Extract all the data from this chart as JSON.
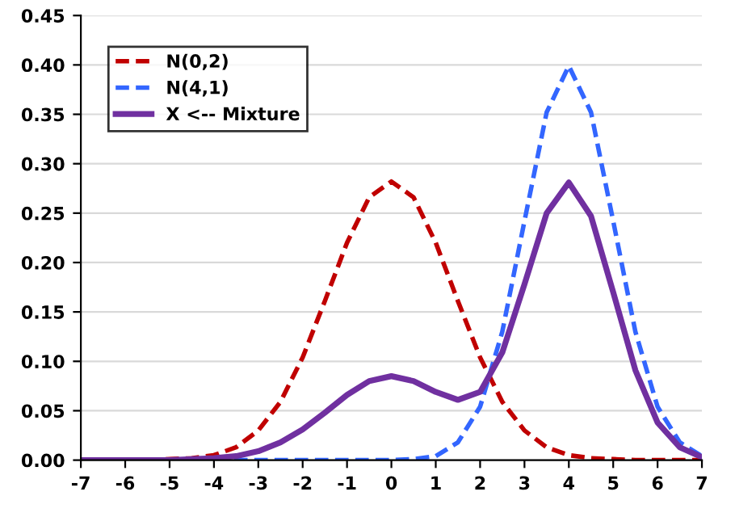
{
  "chart_data": {
    "type": "line",
    "x": [
      -7,
      -6.5,
      -6,
      -5.5,
      -5,
      -4.5,
      -4,
      -3.5,
      -3,
      -2.5,
      -2,
      -1.5,
      -1,
      -0.5,
      0,
      0.5,
      1,
      1.5,
      2,
      2.5,
      3,
      3.5,
      4,
      4.5,
      5,
      5.5,
      6,
      6.5,
      7
    ],
    "series": [
      {
        "name": "N(0,2)",
        "color": "#c00000",
        "line_style": "dashed",
        "values": [
          null,
          null,
          0,
          0,
          0.001,
          0.002,
          0.005,
          0.013,
          0.03,
          0.059,
          0.104,
          0.161,
          0.22,
          0.266,
          0.282,
          0.266,
          0.22,
          0.161,
          0.104,
          0.059,
          0.03,
          0.013,
          0.005,
          0.002,
          0.001,
          0,
          0,
          0,
          0
        ]
      },
      {
        "name": "N(4,1)",
        "color": "#3366ff",
        "line_style": "dashed",
        "values": [
          null,
          null,
          null,
          null,
          null,
          null,
          0,
          0,
          0,
          0,
          0,
          0,
          0,
          0,
          0,
          0.001,
          0.004,
          0.018,
          0.054,
          0.13,
          0.242,
          0.352,
          0.399,
          0.352,
          0.242,
          0.13,
          0.054,
          0.018,
          0.004
        ]
      },
      {
        "name": "X <-- Mixture",
        "color": "#7030a0",
        "line_style": "solid",
        "values": [
          0,
          0,
          0,
          0,
          0,
          0.001,
          0.002,
          0.004,
          0.009,
          0.018,
          0.031,
          0.048,
          0.066,
          0.08,
          0.085,
          0.08,
          0.069,
          0.061,
          0.069,
          0.109,
          0.178,
          0.25,
          0.281,
          0.247,
          0.17,
          0.091,
          0.038,
          0.013,
          0.003
        ]
      }
    ],
    "xlim": [
      -7,
      7
    ],
    "xticks": [
      -7,
      -6,
      -5,
      -4,
      -3,
      -2,
      -1,
      0,
      1,
      2,
      3,
      4,
      5,
      6,
      7
    ],
    "ylim": [
      0,
      0.45
    ],
    "yticks": [
      {
        "value": 0,
        "label": "0.00"
      },
      {
        "value": 0.05,
        "label": "0.05"
      },
      {
        "value": 0.1,
        "label": "0.10"
      },
      {
        "value": 0.15,
        "label": "0.15"
      },
      {
        "value": 0.2,
        "label": "0.20"
      },
      {
        "value": 0.25,
        "label": "0.25"
      },
      {
        "value": 0.3,
        "label": "0.30"
      },
      {
        "value": 0.35,
        "label": "0.35"
      },
      {
        "value": 0.4,
        "label": "0.40"
      },
      {
        "value": 0.45,
        "label": "0.45"
      }
    ],
    "grid": "y",
    "legend": "top left",
    "marker": "none"
  }
}
